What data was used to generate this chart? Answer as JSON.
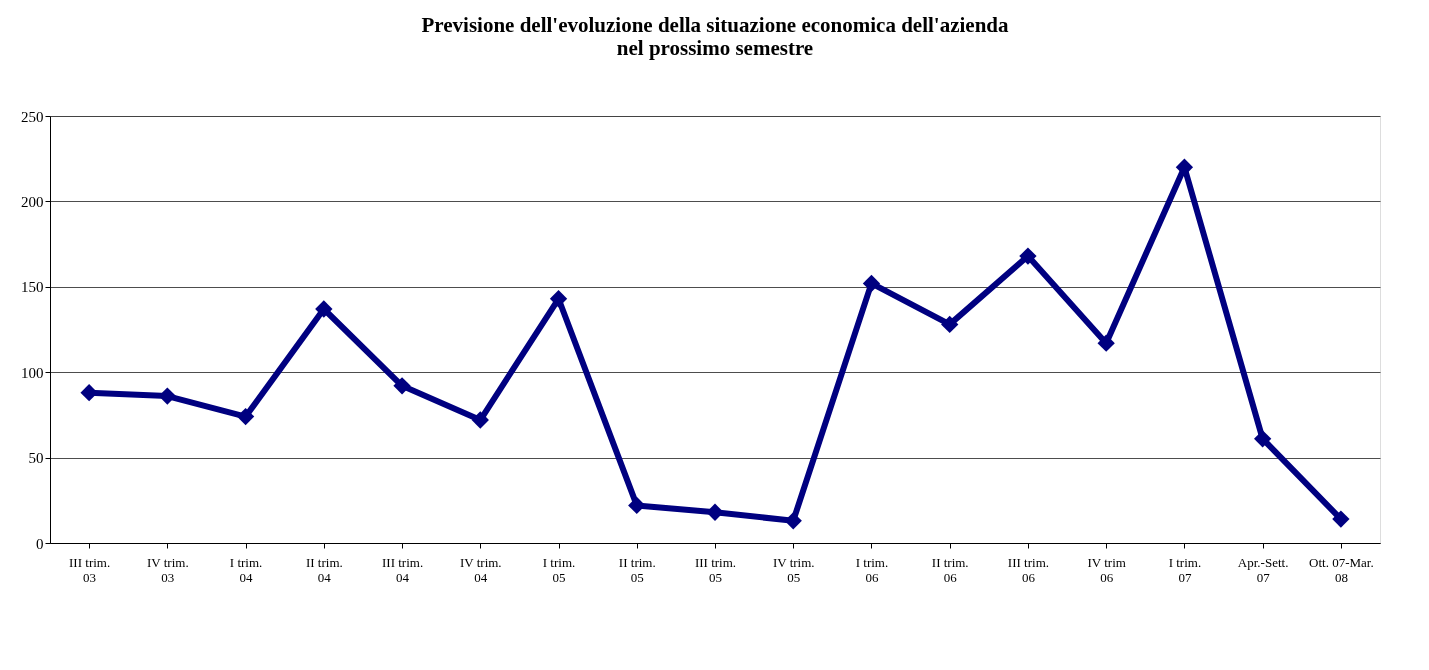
{
  "chart_data": {
    "type": "line",
    "title": [
      "Previsione dell'evoluzione della situazione economica dell'azienda",
      "nel prossimo semestre"
    ],
    "categories": [
      "III trim. 03",
      "IV trim. 03",
      "I trim. 04",
      "II trim. 04",
      "III trim. 04",
      "IV trim. 04",
      "I trim. 05",
      "II trim. 05",
      "III trim. 05",
      "IV trim. 05",
      "I trim. 06",
      "II trim. 06",
      "III trim. 06",
      "IV trim 06",
      "I trim. 07",
      "Apr.-Sett. 07",
      "Ott. 07-Mar. 08"
    ],
    "series": [
      {
        "color": "#000080",
        "values": [
          88,
          86,
          74,
          137,
          92,
          72,
          143,
          22,
          18,
          13,
          152,
          128,
          168,
          117,
          220,
          61,
          14
        ]
      }
    ],
    "ylim": [
      0,
      250
    ],
    "yticks": [
      0,
      50,
      100,
      150,
      200,
      250
    ],
    "grid": "y",
    "marker": "diamond",
    "line_style": "solid",
    "legend": false
  }
}
